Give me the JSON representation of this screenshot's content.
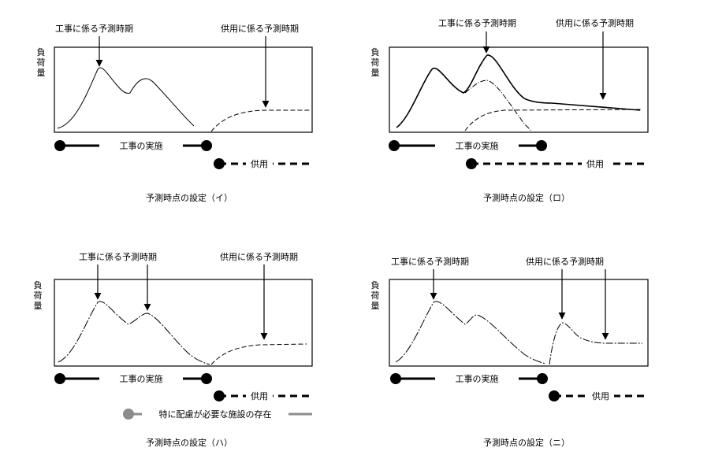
{
  "panels": [
    {
      "id": "i",
      "y_label": [
        "負",
        "荷",
        "量"
      ],
      "annotations": [
        "工事に係る予測時期",
        "供用に係る予測時期"
      ],
      "construction_label": "工事の実施",
      "operation_label": "供用",
      "caption": "予測時点の設定（イ）"
    },
    {
      "id": "ro",
      "y_label": [
        "負",
        "荷",
        "量"
      ],
      "annotations": [
        "工事に係る予測時期",
        "供用に係る予測時期"
      ],
      "construction_label": "工事の実施",
      "operation_label": "供用",
      "caption": "予測時点の設定（ロ）"
    },
    {
      "id": "ha",
      "y_label": [
        "負",
        "荷",
        "量"
      ],
      "annotations": [
        "工事に係る予測時期",
        "供用に係る予測時期"
      ],
      "construction_label": "工事の実施",
      "operation_label": "供用",
      "sensitive_label": "特に配慮が必要な施設の存在",
      "caption": "予測時点の設定（ハ）"
    },
    {
      "id": "ni",
      "y_label": [
        "負",
        "荷",
        "量"
      ],
      "annotations": [
        "工事に係る予測時期",
        "供用に係る予測時期"
      ],
      "construction_label": "工事の実施",
      "operation_label": "供用",
      "caption": "予測時点の設定（ニ）"
    }
  ],
  "colors": {
    "ink": "#000000",
    "sensitive": "#8c8c8c"
  }
}
